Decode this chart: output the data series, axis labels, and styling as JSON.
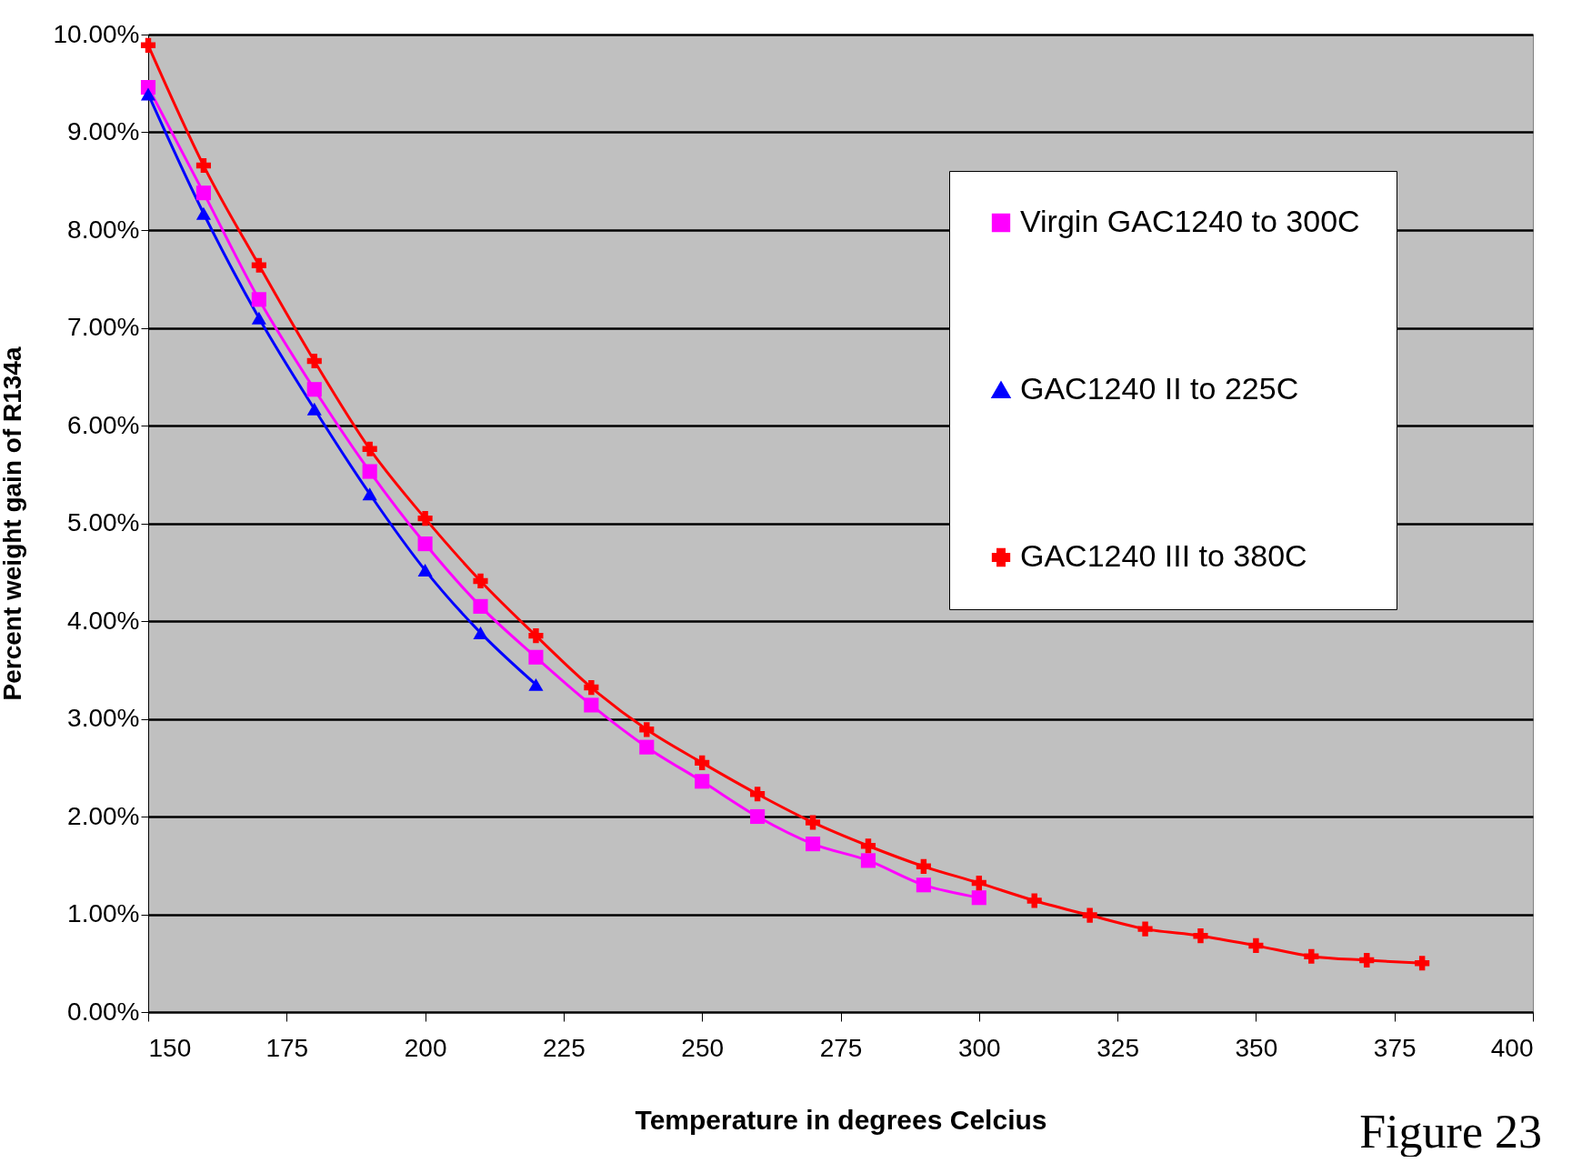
{
  "chart_data": {
    "type": "line",
    "xlabel": "Temperature in degrees Celcius",
    "ylabel": "Percent weight gain of R134a",
    "xlim": [
      150,
      400
    ],
    "xticks": [
      150,
      175,
      200,
      225,
      250,
      275,
      300,
      325,
      350,
      375,
      400
    ],
    "ylim": [
      0,
      10
    ],
    "yticks": [
      {
        "value": 0,
        "label": "0.00%"
      },
      {
        "value": 1,
        "label": "1.00%"
      },
      {
        "value": 2,
        "label": "2.00%"
      },
      {
        "value": 3,
        "label": "3.00%"
      },
      {
        "value": 4,
        "label": "4.00%"
      },
      {
        "value": 5,
        "label": "5.00%"
      },
      {
        "value": 6,
        "label": "6.00%"
      },
      {
        "value": 7,
        "label": "7.00%"
      },
      {
        "value": 8,
        "label": "8.00%"
      },
      {
        "value": 9,
        "label": "9.00%"
      },
      {
        "value": 10,
        "label": "10.00%"
      }
    ],
    "grid": "y",
    "legend": "top right",
    "annotations": [
      "Figure 23"
    ],
    "series": [
      {
        "name": "Virgin GAC1240 to 300C",
        "color": "#ff00ff",
        "marker": "square",
        "x": [
          150,
          160,
          170,
          180,
          190,
          200,
          210,
          220,
          230,
          240,
          250,
          260,
          270,
          280,
          290,
          300
        ],
        "values": [
          9.46,
          8.38,
          7.29,
          6.37,
          5.53,
          4.79,
          4.15,
          3.63,
          3.14,
          2.71,
          2.36,
          2.0,
          1.72,
          1.55,
          1.3,
          1.17
        ]
      },
      {
        "name": "GAC1240 II to 225C",
        "color": "#0000ff",
        "marker": "triangle",
        "x": [
          150,
          160,
          170,
          180,
          190,
          200,
          210,
          220
        ],
        "values": [
          9.39,
          8.17,
          7.1,
          6.17,
          5.3,
          4.52,
          3.88,
          3.35
        ]
      },
      {
        "name": "GAC1240 III to 380C",
        "color": "#ff0000",
        "marker": "cross",
        "x": [
          150,
          160,
          170,
          180,
          190,
          200,
          210,
          220,
          230,
          240,
          250,
          260,
          270,
          280,
          290,
          300,
          310,
          320,
          330,
          340,
          350,
          360,
          370,
          380
        ],
        "values": [
          9.89,
          8.66,
          7.64,
          6.66,
          5.76,
          5.05,
          4.41,
          3.85,
          3.32,
          2.89,
          2.55,
          2.23,
          1.94,
          1.7,
          1.49,
          1.32,
          1.14,
          0.99,
          0.85,
          0.78,
          0.68,
          0.57,
          0.53,
          0.5
        ]
      }
    ]
  }
}
